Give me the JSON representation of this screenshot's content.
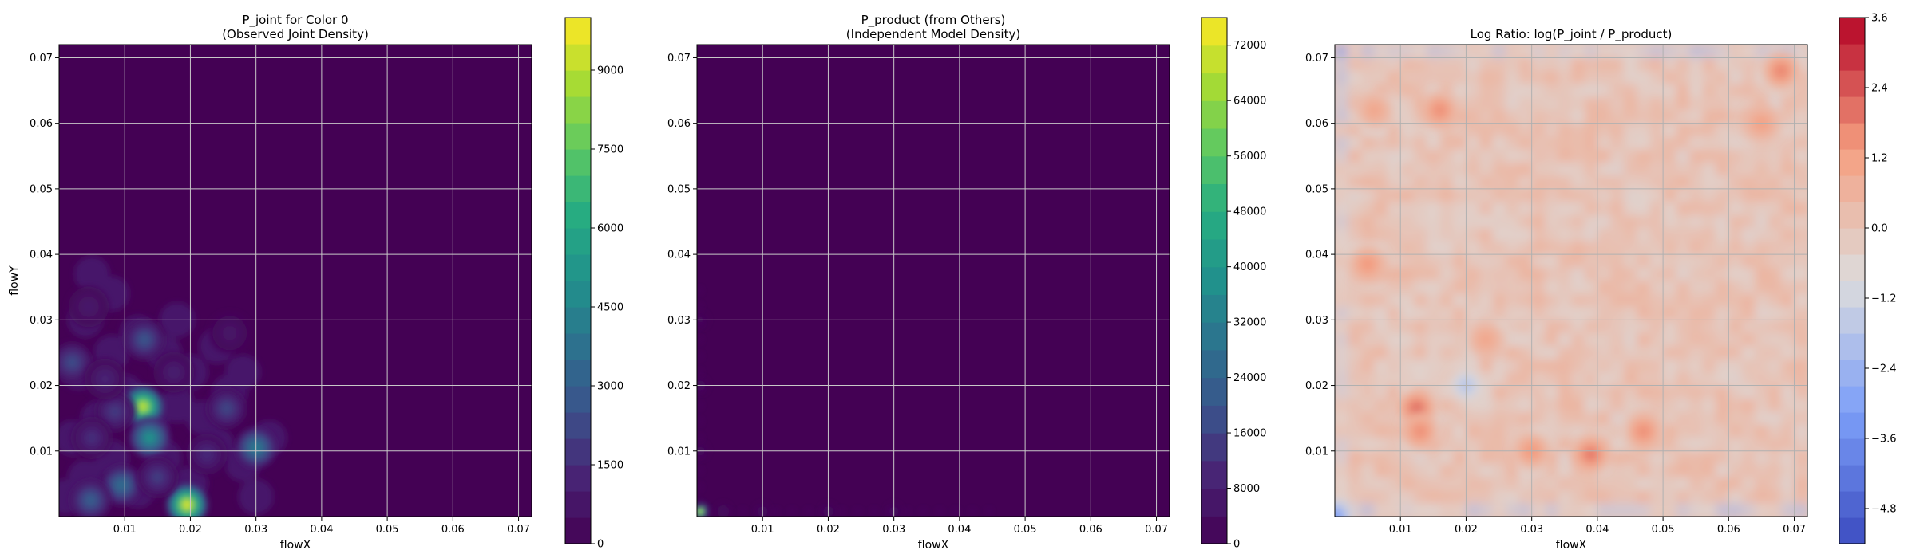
{
  "chart_data": [
    {
      "type": "heatmap",
      "title": "P_joint for Color 0\n(Observed Joint Density)",
      "xlabel": "flowX",
      "ylabel": "flowY",
      "xlim": [
        0.0,
        0.072
      ],
      "ylim": [
        0.0,
        0.072
      ],
      "xticks": [
        0.01,
        0.02,
        0.03,
        0.04,
        0.05,
        0.06,
        0.07
      ],
      "yticks": [
        0.01,
        0.02,
        0.03,
        0.04,
        0.05,
        0.06,
        0.07
      ],
      "grid": true,
      "colormap": "viridis",
      "colorbar": {
        "range": [
          0,
          10000
        ],
        "ticks": [
          0,
          1500,
          3000,
          4500,
          6000,
          7500,
          9000
        ],
        "levels": 20
      },
      "hotspots": [
        {
          "x": 0.0195,
          "y": 0.0018,
          "value": 9600
        },
        {
          "x": 0.0128,
          "y": 0.0168,
          "value": 9200
        },
        {
          "x": 0.0138,
          "y": 0.012,
          "value": 5200
        },
        {
          "x": 0.03,
          "y": 0.0105,
          "value": 4200
        },
        {
          "x": 0.0095,
          "y": 0.0048,
          "value": 3600
        },
        {
          "x": 0.0048,
          "y": 0.0025,
          "value": 3000
        },
        {
          "x": 0.013,
          "y": 0.027,
          "value": 2700
        },
        {
          "x": 0.002,
          "y": 0.0235,
          "value": 2400
        },
        {
          "x": 0.0255,
          "y": 0.0165,
          "value": 2200
        },
        {
          "x": 0.015,
          "y": 0.006,
          "value": 2000
        },
        {
          "x": 0.0085,
          "y": 0.016,
          "value": 1900
        },
        {
          "x": 0.005,
          "y": 0.012,
          "value": 1600
        },
        {
          "x": 0.0225,
          "y": 0.0095,
          "value": 1500
        },
        {
          "x": 0.007,
          "y": 0.021,
          "value": 1300
        },
        {
          "x": 0.0175,
          "y": 0.022,
          "value": 1100
        },
        {
          "x": 0.0045,
          "y": 0.032,
          "value": 900
        },
        {
          "x": 0.026,
          "y": 0.028,
          "value": 800
        }
      ]
    },
    {
      "type": "heatmap",
      "title": "P_product (from Others)\n(Independent Model Density)",
      "xlabel": "flowX",
      "ylabel": "",
      "xlim": [
        0.0,
        0.072
      ],
      "ylim": [
        0.0,
        0.072
      ],
      "xticks": [
        0.01,
        0.02,
        0.03,
        0.04,
        0.05,
        0.06,
        0.07
      ],
      "yticks": [
        0.01,
        0.02,
        0.03,
        0.04,
        0.05,
        0.06,
        0.07
      ],
      "grid": true,
      "colormap": "viridis",
      "colorbar": {
        "range": [
          0,
          76000
        ],
        "ticks": [
          0,
          8000,
          16000,
          24000,
          32000,
          40000,
          48000,
          56000,
          64000,
          72000
        ],
        "levels": 19
      },
      "hotspots": [
        {
          "x": 0.0005,
          "y": 0.0008,
          "value": 74000
        },
        {
          "x": 0.004,
          "y": 0.0008,
          "value": 4000
        },
        {
          "x": 0.01,
          "y": 0.0008,
          "value": 3500
        },
        {
          "x": 0.02,
          "y": 0.0008,
          "value": 3500
        },
        {
          "x": 0.03,
          "y": 0.0008,
          "value": 3000
        },
        {
          "x": 0.0005,
          "y": 0.01,
          "value": 3000
        },
        {
          "x": 0.0005,
          "y": 0.02,
          "value": 3500
        },
        {
          "x": 0.0005,
          "y": 0.03,
          "value": 2500
        }
      ]
    },
    {
      "type": "heatmap",
      "title": "Log Ratio: log(P_joint / P_product)",
      "xlabel": "flowX",
      "ylabel": "",
      "xlim": [
        0.0,
        0.072
      ],
      "ylim": [
        0.0,
        0.072
      ],
      "xticks": [
        0.01,
        0.02,
        0.03,
        0.04,
        0.05,
        0.06,
        0.07
      ],
      "yticks": [
        0.01,
        0.02,
        0.03,
        0.04,
        0.05,
        0.06,
        0.07
      ],
      "grid": true,
      "colormap": "coolwarm",
      "colorbar": {
        "range": [
          -5.4,
          3.6
        ],
        "ticks": [
          -4.8,
          -3.6,
          -2.4,
          -1.2,
          0.0,
          1.2,
          2.4,
          3.6
        ],
        "levels": 20
      },
      "hotspots": [
        {
          "x": 0.0125,
          "y": 0.0165,
          "value": 2.4
        },
        {
          "x": 0.013,
          "y": 0.013,
          "value": 1.8
        },
        {
          "x": 0.039,
          "y": 0.0095,
          "value": 2.2
        },
        {
          "x": 0.047,
          "y": 0.013,
          "value": 1.8
        },
        {
          "x": 0.03,
          "y": 0.01,
          "value": 1.6
        },
        {
          "x": 0.005,
          "y": 0.0385,
          "value": 1.6
        },
        {
          "x": 0.016,
          "y": 0.062,
          "value": 1.8
        },
        {
          "x": 0.068,
          "y": 0.068,
          "value": 2.0
        },
        {
          "x": 0.065,
          "y": 0.06,
          "value": 1.4
        },
        {
          "x": 0.023,
          "y": 0.027,
          "value": 1.2
        },
        {
          "x": 0.006,
          "y": 0.062,
          "value": 1.2
        },
        {
          "x": 0.0,
          "y": 0.0,
          "value": -3.6
        },
        {
          "x": 0.02,
          "y": 0.02,
          "value": -2.0
        }
      ]
    }
  ]
}
